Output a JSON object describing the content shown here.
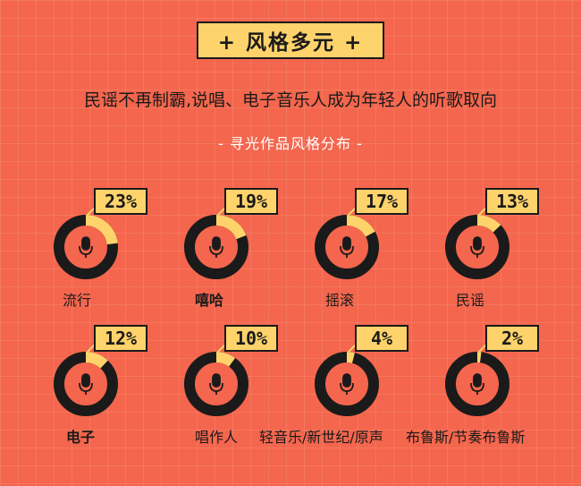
{
  "banner": {
    "title": "+ 风格多元 +"
  },
  "subtitle": "民谣不再制霸,说唱、电子音乐人成为年轻人的听歌取向",
  "caption": "- 寻光作品风格分布 -",
  "colors": {
    "background": "#f4664d",
    "ring_dark": "#1a1a1a",
    "ring_highlight": "#ffd36b",
    "center_fill": "#f4664d",
    "mic_icon": "#1a1a1a"
  },
  "icons": {
    "center": "microphone-icon"
  },
  "chart_data": {
    "type": "pie",
    "title": "- 寻光作品风格分布 -",
    "categories": [
      "流行",
      "嘻哈",
      "摇滚",
      "民谣",
      "电子",
      "唱作人",
      "轻音乐/新世纪/原声",
      "布鲁斯/节奏布鲁斯"
    ],
    "values": [
      23,
      19,
      17,
      13,
      12,
      10,
      4,
      2
    ],
    "value_labels": [
      "23%",
      "19%",
      "17%",
      "13%",
      "12%",
      "10%",
      "4%",
      "2%"
    ],
    "unit": "%",
    "bold_labels": [
      "嘻哈",
      "电子"
    ]
  }
}
